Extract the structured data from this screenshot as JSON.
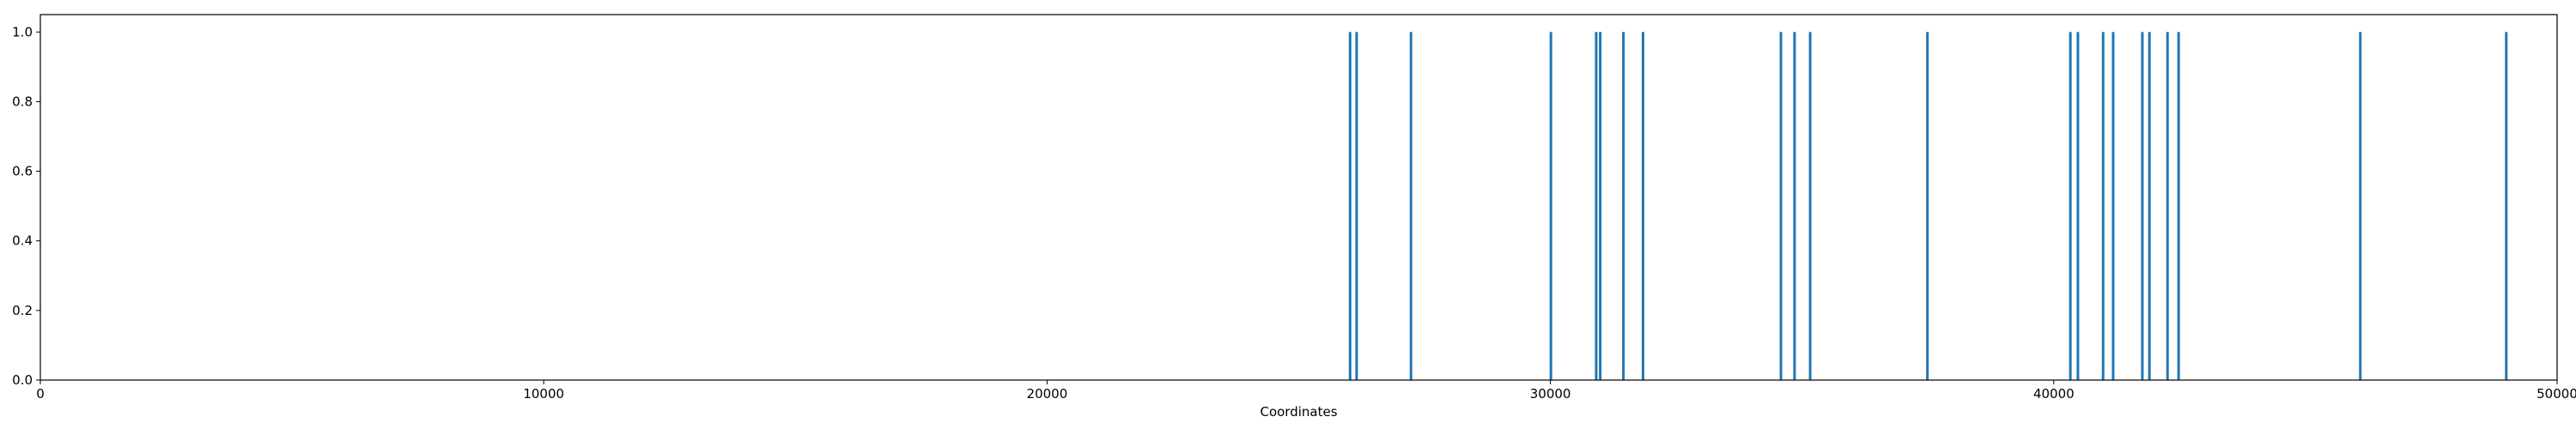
{
  "chart_data": {
    "type": "bar",
    "xlabel": "Coordinates",
    "ylabel": "",
    "title": "",
    "xlim": [
      0,
      50000
    ],
    "ylim": [
      0,
      1.05
    ],
    "xticks": [
      0,
      10000,
      20000,
      30000,
      40000,
      50000
    ],
    "xtick_labels": [
      "0",
      "10000",
      "20000",
      "30000",
      "40000",
      "50000"
    ],
    "yticks": [
      0.0,
      0.2,
      0.4,
      0.6,
      0.8,
      1.0
    ],
    "ytick_labels": [
      "0.0",
      "0.2",
      "0.4",
      "0.6",
      "0.8",
      "1.0"
    ],
    "grid": false,
    "bar_color": "#1f77b4",
    "x": [
      26020,
      26150,
      27230,
      30010,
      30910,
      30990,
      31450,
      31840,
      34580,
      34850,
      35160,
      37490,
      40330,
      40480,
      40980,
      41180,
      41760,
      41900,
      42260,
      42480,
      46090,
      48990
    ],
    "values": [
      1,
      1,
      1,
      1,
      1,
      1,
      1,
      1,
      1,
      1,
      1,
      1,
      1,
      1,
      1,
      1,
      1,
      1,
      1,
      1,
      1,
      1
    ]
  }
}
